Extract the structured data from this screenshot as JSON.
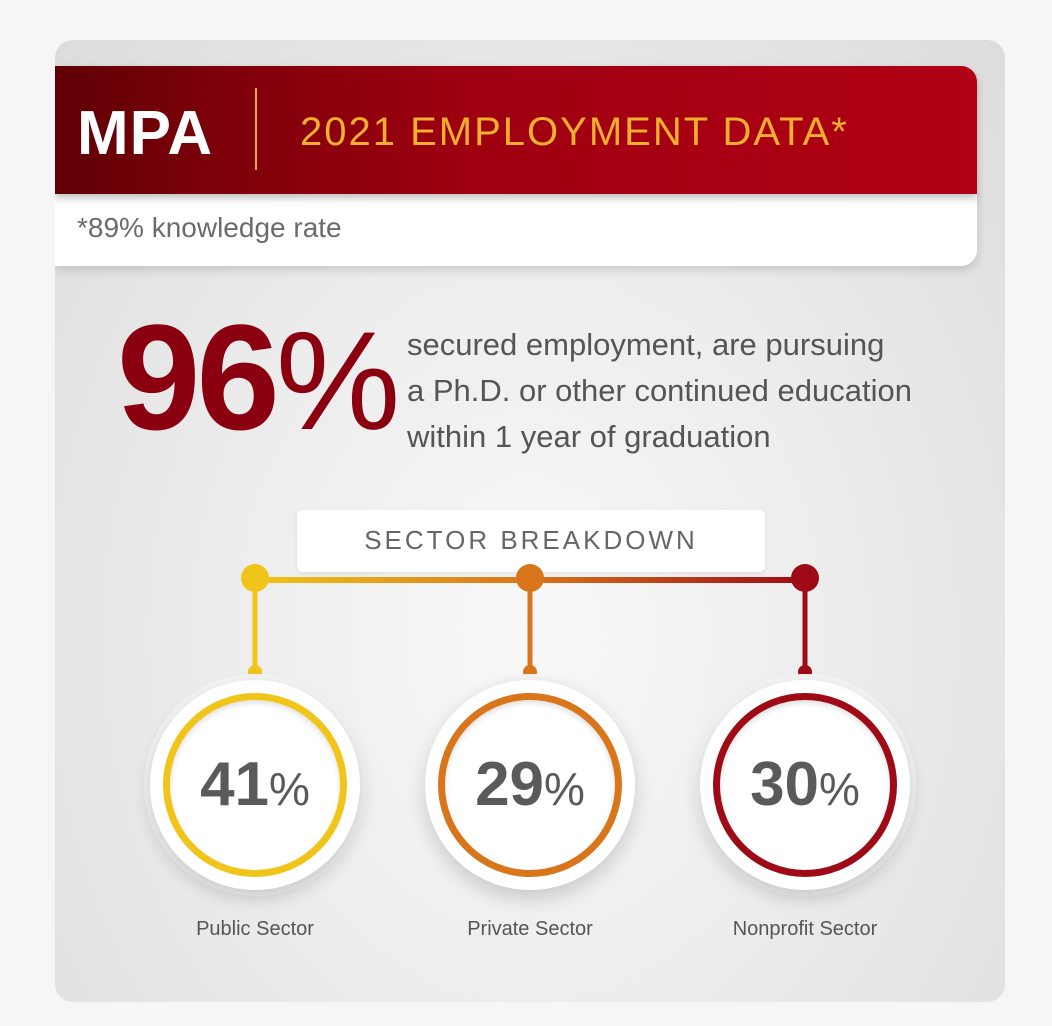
{
  "header": {
    "logo": "MPA",
    "title": "2021 EMPLOYMENT DATA*",
    "note": "*89% knowledge rate"
  },
  "headline": {
    "value": "96",
    "symbol": "%",
    "lines": [
      "secured employment, are pursuing",
      "a Ph.D. or other continued education",
      "within 1 year of graduation"
    ]
  },
  "breakdown": {
    "title": "SECTOR BREAKDOWN",
    "sectors": [
      {
        "value": "41",
        "symbol": "%",
        "label": "Public Sector",
        "color": "#f0c419"
      },
      {
        "value": "29",
        "symbol": "%",
        "label": "Private Sector",
        "color": "#d9751a"
      },
      {
        "value": "30",
        "symbol": "%",
        "label": "Nonprofit Sector",
        "color": "#9e0a16"
      }
    ]
  },
  "colors": {
    "brand_red": "#8a0010",
    "gold": "#f2ae2e"
  }
}
